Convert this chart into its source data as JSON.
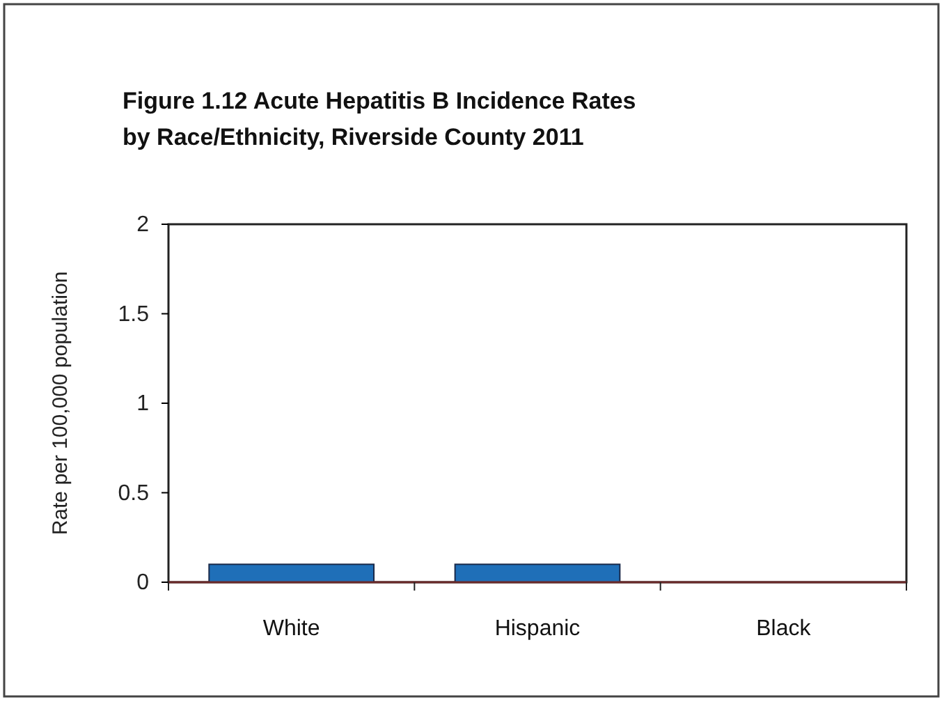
{
  "chart_data": {
    "type": "bar",
    "title": "Figure 1.12 Acute Hepatitis B Incidence Rates\nby Race/Ethnicity, Riverside County 2011",
    "ylabel": "Rate per 100,000 population",
    "categories": [
      "White",
      "Hispanic",
      "Black"
    ],
    "values": [
      0.1,
      0.1,
      0
    ],
    "color": "#1f6fb8",
    "ylim": [
      0,
      2
    ],
    "yticks": [
      0,
      0.5,
      1,
      1.5,
      2
    ],
    "grid": false
  }
}
